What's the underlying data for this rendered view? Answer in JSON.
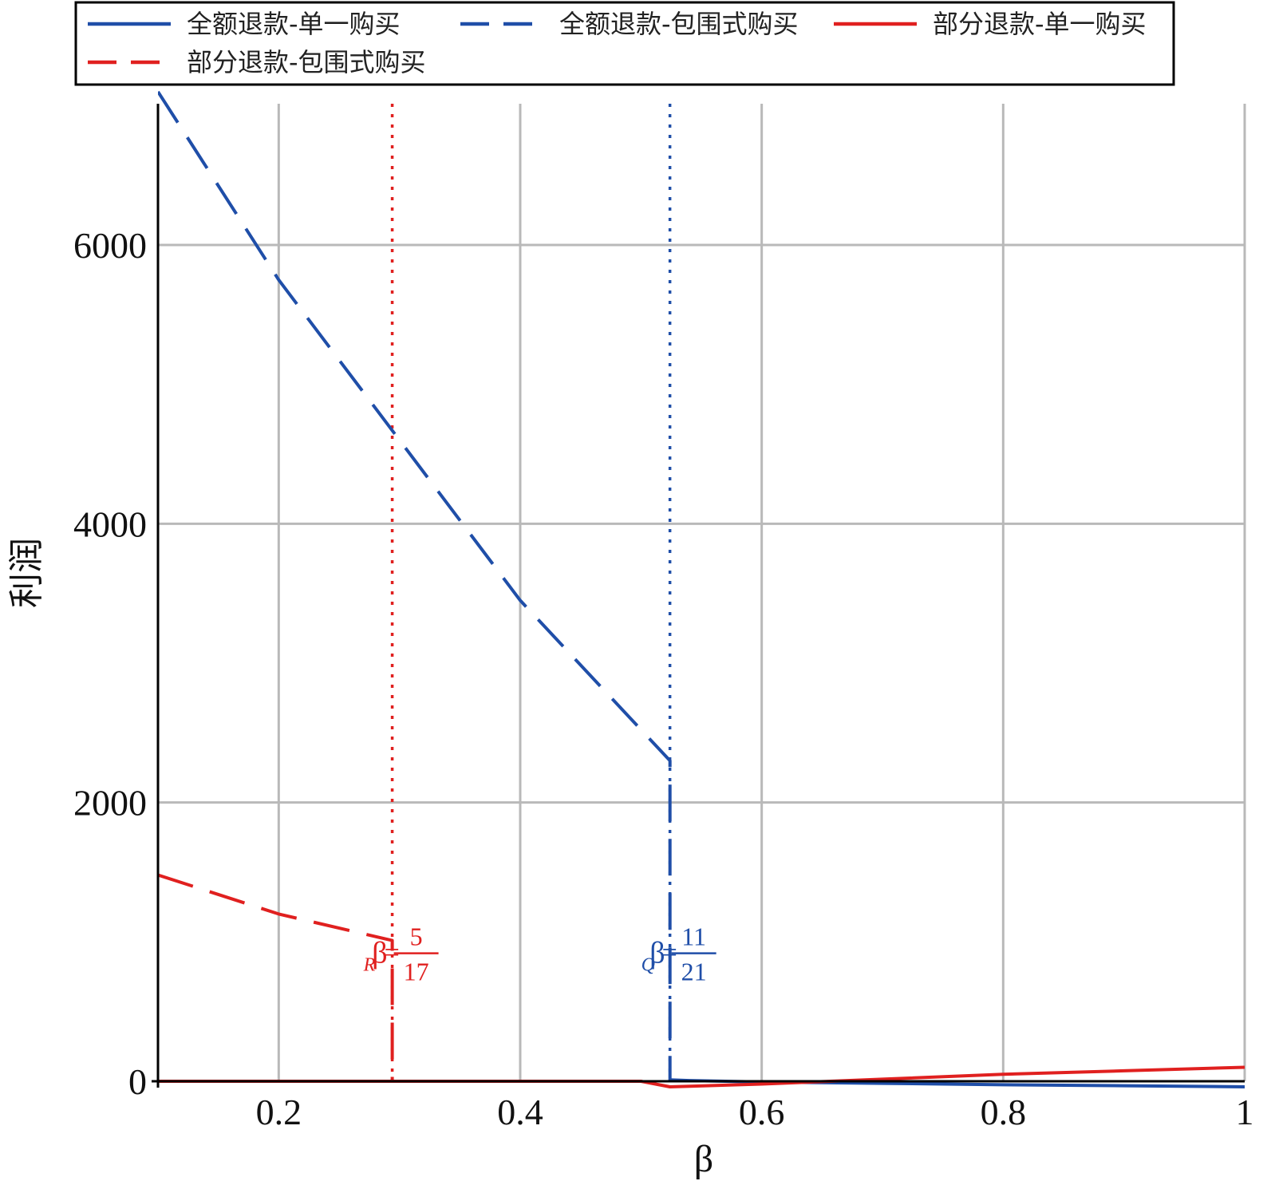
{
  "chart_data": {
    "type": "line",
    "xlabel": "β",
    "ylabel": "利润",
    "xlim": [
      0.1,
      1.0
    ],
    "ylim": [
      -50,
      7000
    ],
    "x_ticks": [
      "0.2",
      "0.4",
      "0.6",
      "0.8",
      "1"
    ],
    "x_tick_values": [
      0.2,
      0.4,
      0.6,
      0.8,
      1.0
    ],
    "y_ticks": [
      "0",
      "2000",
      "4000",
      "6000"
    ],
    "y_tick_values": [
      0,
      2000,
      4000,
      6000
    ],
    "grid": true,
    "legend_position": "top",
    "series": [
      {
        "name": "全额退款-单一购买",
        "color": "#1f4ea8",
        "style": "solid",
        "x": [
          0.524,
          0.54,
          0.6,
          0.7,
          0.8,
          0.9,
          1.0
        ],
        "y": [
          10,
          5,
          -5,
          -15,
          -25,
          -32,
          -40
        ]
      },
      {
        "name": "全额退款-包围式购买",
        "color": "#1f4ea8",
        "style": "dashed",
        "x": [
          0.1,
          0.2,
          0.3,
          0.4,
          0.524,
          0.524
        ],
        "y": [
          7100,
          5750,
          4600,
          3450,
          2300,
          0
        ]
      },
      {
        "name": "部分退款-单一购买",
        "color": "#e0201f",
        "style": "solid",
        "x": [
          0.1,
          0.294,
          0.294,
          0.5,
          0.524,
          0.6,
          0.7,
          0.8,
          0.9,
          1.0
        ],
        "y": [
          0,
          0,
          0,
          0,
          -40,
          -20,
          15,
          50,
          75,
          100
        ]
      },
      {
        "name": "部分退款-包围式购买",
        "color": "#e0201f",
        "style": "dashed",
        "x": [
          0.1,
          0.2,
          0.294,
          0.294
        ],
        "y": [
          1480,
          1200,
          1010,
          0
        ]
      }
    ],
    "vlines": [
      {
        "x": 0.294,
        "color": "#e0201f",
        "style": "dotted"
      },
      {
        "x": 0.524,
        "color": "#1f4ea8",
        "style": "dotted"
      }
    ],
    "annotations": [
      {
        "symbol": "β",
        "subscript": "R",
        "equals": "=",
        "numerator": "5",
        "denominator": "17",
        "color": "#e0201f",
        "x": 0.294,
        "y": 1010
      },
      {
        "symbol": "β",
        "subscript": "Q",
        "equals": "=",
        "numerator": "11",
        "denominator": "21",
        "color": "#1f4ea8",
        "x": 0.524,
        "y": 1010
      }
    ]
  }
}
